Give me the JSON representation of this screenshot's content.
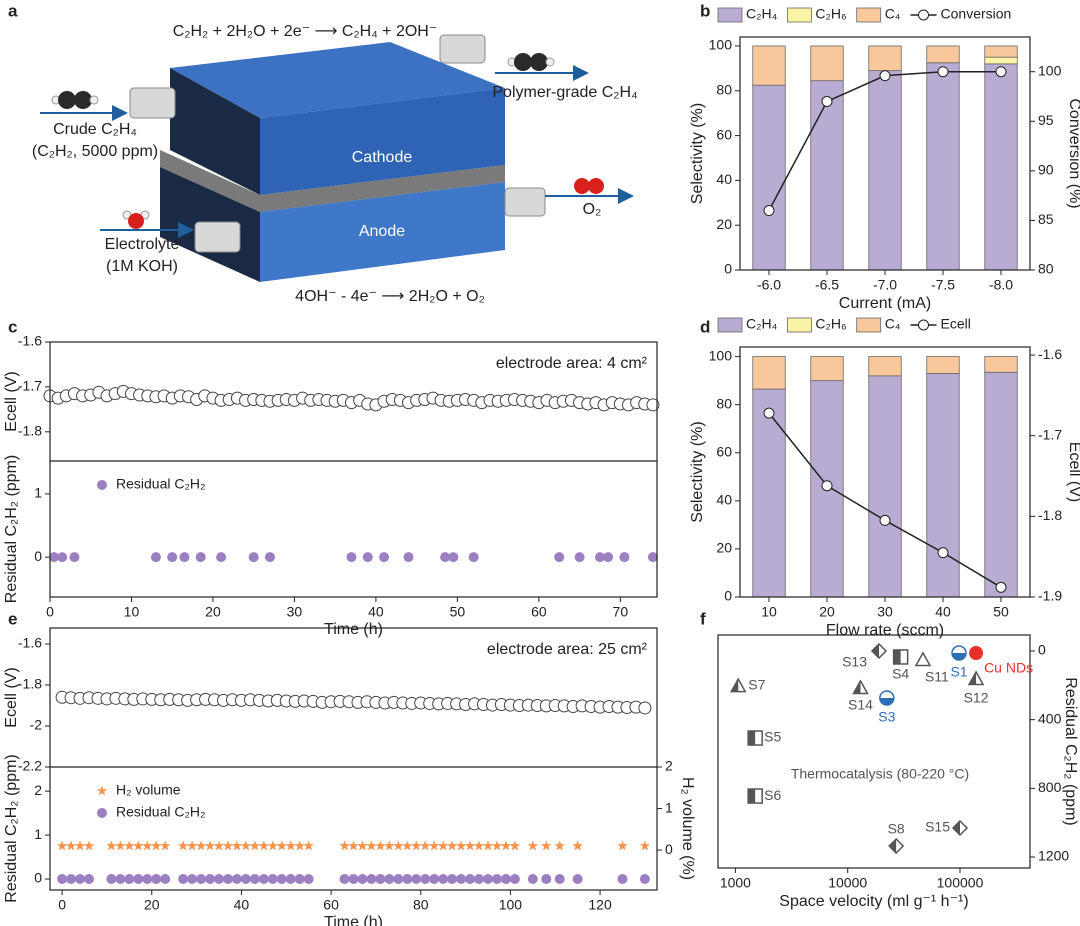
{
  "diagram": {
    "panel": "a",
    "cathode_reaction": "C₂H₂ + 2H₂O + 2e⁻ ⟶ C₂H₄ + 2OH⁻",
    "inlet": "Crude C₂H₄",
    "inlet_note": "(C₂H₂, 5000 ppm)",
    "outlet": "Polymer-grade C₂H₄",
    "cathode": "Cathode",
    "anode": "Anode",
    "oxygen": "O₂",
    "electrolyte": "Electrolyte",
    "electrolyte_note": "(1M KOH)",
    "anode_reaction": "4OH⁻ - 4e⁻ ⟶ 2H₂O + O₂"
  },
  "chart_data": [
    {
      "type": "bar",
      "panel": "b",
      "categories": [
        "-6.0",
        "-6.5",
        "-7.0",
        "-7.5",
        "-8.0"
      ],
      "xlabel": "Current (mA)",
      "ylabel": "Selectivity (%)",
      "y2label": "Conversion (%)",
      "ylim": [
        0,
        104
      ],
      "yticks": [
        0,
        20,
        40,
        60,
        80,
        100
      ],
      "y2lim": [
        80,
        103.5
      ],
      "y2ticks": [
        80,
        85,
        90,
        95,
        100
      ],
      "stacked": true,
      "series": [
        {
          "name": "C₂H₄",
          "color": "#b9acd3",
          "values": [
            82.5,
            84.5,
            89,
            92.5,
            92
          ]
        },
        {
          "name": "C₂H₆",
          "color": "#fbf3a5",
          "values": [
            0,
            0,
            0,
            0,
            3
          ]
        },
        {
          "name": "C₄",
          "color": "#f8c79b",
          "values": [
            17.5,
            15.5,
            11,
            7.5,
            5
          ]
        },
        {
          "name": "Conversion",
          "color": "#222222",
          "axis": "y2",
          "values": [
            86,
            97,
            99.6,
            100,
            100
          ]
        }
      ]
    },
    {
      "type": "scatter",
      "panel": "c",
      "xlabel": "Time (h)",
      "xlim": [
        0,
        74.5
      ],
      "xticks": [
        0,
        10,
        20,
        30,
        40,
        50,
        60,
        70
      ],
      "annotation": "electrode area: 4 cm²",
      "panels": [
        {
          "ylabel": "Ecell (V)",
          "ylim": [
            -1.865,
            -1.6
          ],
          "yticks": [
            -1.8,
            -1.7,
            -1.6
          ],
          "series": [
            {
              "marker": "circle-open",
              "color": "#444444",
              "x": [
                0,
                1,
                2,
                3,
                4,
                5,
                6,
                7,
                8,
                9,
                10,
                11,
                12,
                13,
                14,
                15,
                16,
                17,
                18,
                19,
                20,
                21,
                22,
                23,
                24,
                25,
                26,
                27,
                28,
                29,
                30,
                31,
                32,
                33,
                34,
                35,
                36,
                37,
                38,
                39,
                40,
                41,
                42,
                43,
                44,
                45,
                46,
                47,
                48,
                49,
                50,
                51,
                52,
                53,
                54,
                55,
                56,
                57,
                58,
                59,
                60,
                61,
                62,
                63,
                64,
                65,
                66,
                67,
                68,
                69,
                70,
                71,
                72,
                73,
                74
              ],
              "values": [
                -1.72,
                -1.725,
                -1.72,
                -1.715,
                -1.72,
                -1.718,
                -1.712,
                -1.72,
                -1.715,
                -1.71,
                -1.715,
                -1.718,
                -1.72,
                -1.722,
                -1.72,
                -1.725,
                -1.72,
                -1.722,
                -1.728,
                -1.72,
                -1.725,
                -1.73,
                -1.728,
                -1.725,
                -1.73,
                -1.728,
                -1.73,
                -1.732,
                -1.73,
                -1.728,
                -1.73,
                -1.725,
                -1.73,
                -1.728,
                -1.73,
                -1.732,
                -1.73,
                -1.735,
                -1.73,
                -1.738,
                -1.74,
                -1.732,
                -1.728,
                -1.73,
                -1.735,
                -1.73,
                -1.728,
                -1.725,
                -1.73,
                -1.732,
                -1.73,
                -1.728,
                -1.73,
                -1.735,
                -1.73,
                -1.732,
                -1.73,
                -1.728,
                -1.73,
                -1.732,
                -1.735,
                -1.73,
                -1.735,
                -1.732,
                -1.73,
                -1.735,
                -1.738,
                -1.735,
                -1.74,
                -1.735,
                -1.738,
                -1.74,
                -1.735,
                -1.738,
                -1.74
              ]
            }
          ]
        },
        {
          "ylabel": "Residual C₂H₂ (ppm)",
          "ylim": [
            -0.63,
            1.52
          ],
          "yticks": [
            0,
            1
          ],
          "series": [
            {
              "name": "Residual C₂H₂",
              "marker": "circle",
              "color": "#9b7fc0",
              "x": [
                0.5,
                1.5,
                3,
                13,
                15,
                16.5,
                18.5,
                21,
                25,
                27,
                37,
                39,
                41,
                44,
                48.5,
                49.5,
                52,
                62.5,
                65,
                67.5,
                68.5,
                70.5,
                74
              ],
              "values": [
                0,
                0,
                0,
                0,
                0,
                0,
                0,
                0,
                0,
                0,
                0,
                0,
                0,
                0,
                0,
                0,
                0,
                0,
                0,
                0,
                0,
                0,
                0
              ]
            }
          ]
        }
      ]
    },
    {
      "type": "bar",
      "panel": "d",
      "categories": [
        "10",
        "20",
        "30",
        "40",
        "50"
      ],
      "xlabel": "Flow rate (sccm)",
      "ylabel": "Selectivity (%)",
      "y2label": "Ecell (V)",
      "ylim": [
        0,
        104
      ],
      "yticks": [
        0,
        20,
        40,
        60,
        80,
        100
      ],
      "y2lim": [
        -1.9,
        -1.59
      ],
      "y2ticks": [
        -1.9,
        -1.8,
        -1.7,
        -1.6
      ],
      "stacked": true,
      "series": [
        {
          "name": "C₂H₄",
          "color": "#b9acd3",
          "values": [
            86.5,
            90,
            92,
            93,
            93.5
          ]
        },
        {
          "name": "C₂H₆",
          "color": "#fbf3a5",
          "values": [
            0,
            0,
            0,
            0,
            0
          ]
        },
        {
          "name": "C₄",
          "color": "#f8c79b",
          "values": [
            13.5,
            10,
            8,
            7,
            6.5
          ]
        },
        {
          "name": "Ecell",
          "color": "#222222",
          "axis": "y2",
          "values": [
            -1.672,
            -1.762,
            -1.805,
            -1.845,
            -1.888
          ]
        }
      ]
    },
    {
      "type": "scatter",
      "panel": "e",
      "xlabel": "Time (h)",
      "xlim": [
        -2.7,
        132.7
      ],
      "xticks": [
        0,
        20,
        40,
        60,
        80,
        100,
        120
      ],
      "annotation": "electrode area: 25 cm²",
      "panels": [
        {
          "ylabel": "Ecell (V)",
          "ylim": [
            -2.2,
            -1.522
          ],
          "yticks": [
            -2.2,
            -2.0,
            -1.8,
            -1.6
          ],
          "series": [
            {
              "marker": "circle-open",
              "color": "#444444",
              "x": [
                0,
                2,
                4,
                6,
                8,
                10,
                12,
                14,
                16,
                18,
                20,
                22,
                24,
                26,
                28,
                30,
                32,
                34,
                36,
                38,
                40,
                42,
                44,
                46,
                48,
                50,
                52,
                54,
                56,
                58,
                60,
                62,
                64,
                66,
                68,
                70,
                72,
                74,
                76,
                78,
                80,
                82,
                84,
                86,
                88,
                90,
                92,
                94,
                96,
                98,
                100,
                102,
                104,
                106,
                108,
                110,
                112,
                114,
                116,
                118,
                120,
                122,
                124,
                126,
                128,
                130
              ],
              "values": [
                -1.86,
                -1.862,
                -1.865,
                -1.862,
                -1.865,
                -1.868,
                -1.865,
                -1.868,
                -1.87,
                -1.868,
                -1.87,
                -1.872,
                -1.87,
                -1.872,
                -1.875,
                -1.872,
                -1.87,
                -1.872,
                -1.875,
                -1.872,
                -1.875,
                -1.872,
                -1.875,
                -1.878,
                -1.875,
                -1.878,
                -1.88,
                -1.878,
                -1.88,
                -1.885,
                -1.882,
                -1.88,
                -1.882,
                -1.885,
                -1.882,
                -1.885,
                -1.888,
                -1.885,
                -1.888,
                -1.89,
                -1.888,
                -1.89,
                -1.892,
                -1.89,
                -1.892,
                -1.895,
                -1.892,
                -1.895,
                -1.898,
                -1.895,
                -1.898,
                -1.9,
                -1.898,
                -1.9,
                -1.902,
                -1.9,
                -1.902,
                -1.905,
                -1.902,
                -1.905,
                -1.908,
                -1.905,
                -1.908,
                -1.91,
                -1.908,
                -1.912
              ]
            }
          ]
        },
        {
          "ylabel": "Residual C₂H₂ (ppm)",
          "ylim": [
            -0.25,
            2.55
          ],
          "yticks": [
            0,
            1,
            2
          ],
          "y2label": "H₂ volume (%)",
          "y2lim": [
            -0.96,
            2
          ],
          "y2ticks": [
            0,
            1,
            2
          ],
          "series": [
            {
              "name": "H₂ volume",
              "marker": "star",
              "color": "#f5944f",
              "axis": "y2",
              "x": [
                0,
                2,
                4,
                6,
                11,
                13,
                15,
                17,
                19,
                21,
                23,
                27,
                29,
                31,
                33,
                35,
                37,
                39,
                41,
                43,
                45,
                47,
                49,
                51,
                53,
                55,
                63,
                65,
                67,
                69,
                71,
                73,
                75,
                77,
                79,
                81,
                83,
                85,
                87,
                89,
                91,
                93,
                95,
                97,
                99,
                101,
                105,
                108,
                111,
                115,
                125,
                130
              ],
              "values": [
                0.1,
                0.1,
                0.1,
                0.1,
                0.1,
                0.1,
                0.1,
                0.1,
                0.1,
                0.1,
                0.1,
                0.1,
                0.1,
                0.1,
                0.1,
                0.1,
                0.1,
                0.1,
                0.1,
                0.1,
                0.1,
                0.1,
                0.1,
                0.1,
                0.1,
                0.1,
                0.1,
                0.1,
                0.1,
                0.1,
                0.1,
                0.1,
                0.1,
                0.1,
                0.1,
                0.1,
                0.1,
                0.1,
                0.1,
                0.1,
                0.1,
                0.1,
                0.1,
                0.1,
                0.1,
                0.1,
                0.1,
                0.1,
                0.1,
                0.1,
                0.1,
                0.1
              ]
            },
            {
              "name": "Residual C₂H₂",
              "marker": "circle",
              "color": "#9b7fc0",
              "x": [
                0,
                2,
                4,
                6,
                11,
                13,
                15,
                17,
                19,
                21,
                23,
                27,
                29,
                31,
                33,
                35,
                37,
                39,
                41,
                43,
                45,
                47,
                49,
                51,
                53,
                55,
                63,
                65,
                67,
                69,
                71,
                73,
                75,
                77,
                79,
                81,
                83,
                85,
                87,
                89,
                91,
                93,
                95,
                97,
                99,
                101,
                105,
                108,
                111,
                115,
                125,
                130
              ],
              "values": [
                0,
                0,
                0,
                0,
                0,
                0,
                0,
                0,
                0,
                0,
                0,
                0,
                0,
                0,
                0,
                0,
                0,
                0,
                0,
                0,
                0,
                0,
                0,
                0,
                0,
                0,
                0,
                0,
                0,
                0,
                0,
                0,
                0,
                0,
                0,
                0,
                0,
                0,
                0,
                0,
                0,
                0,
                0,
                0,
                0,
                0,
                0,
                0,
                0,
                0,
                0,
                0
              ]
            }
          ]
        }
      ]
    },
    {
      "type": "point",
      "panel": "f",
      "xscale": "log",
      "xlim": [
        700,
        420000
      ],
      "xticks": [
        1000,
        10000,
        100000
      ],
      "ylim": [
        -93,
        1264
      ],
      "y_reversed": true,
      "yticks": [
        0,
        400,
        800,
        1200
      ],
      "xlabel": "Space velocity (ml g⁻¹ h⁻¹)",
      "ylabel": "Residual C₂H₂ (ppm)",
      "annotation": "Thermocatalysis (80-220 °C)",
      "labels": [
        "S7",
        "S13",
        "S4",
        "S11",
        "S1",
        "Cu NDs",
        "S14",
        "S3",
        "S12",
        "S5",
        "S6",
        "S8",
        "S15"
      ],
      "x": [
        1060,
        19000,
        29600,
        46800,
        98000,
        139000,
        13000,
        22300,
        139000,
        1500,
        1500,
        27000,
        100000
      ],
      "values": [
        204,
        0,
        35,
        52,
        12,
        12,
        215,
        274,
        163,
        507,
        845,
        1136,
        1031
      ],
      "markers": [
        "triangle-half",
        "diamond-half",
        "square-half",
        "triangle-open",
        "circle-half",
        "circle",
        "triangle-half",
        "circle-half",
        "triangle-half",
        "square-half",
        "square-half",
        "diamond-half",
        "diamond-half"
      ],
      "colors": [
        "#555555",
        "#555555",
        "#555555",
        "#555555",
        "#2f6fb5",
        "#e8302a",
        "#555555",
        "#2f6fb5",
        "#555555",
        "#555555",
        "#555555",
        "#555555",
        "#555555"
      ],
      "label_colors": [
        "#555555",
        "#555555",
        "#555555",
        "#555555",
        "#2f6fb5",
        "#e8302a",
        "#555555",
        "#2f6fb5",
        "#555555",
        "#555555",
        "#555555",
        "#555555",
        "#555555"
      ]
    }
  ]
}
